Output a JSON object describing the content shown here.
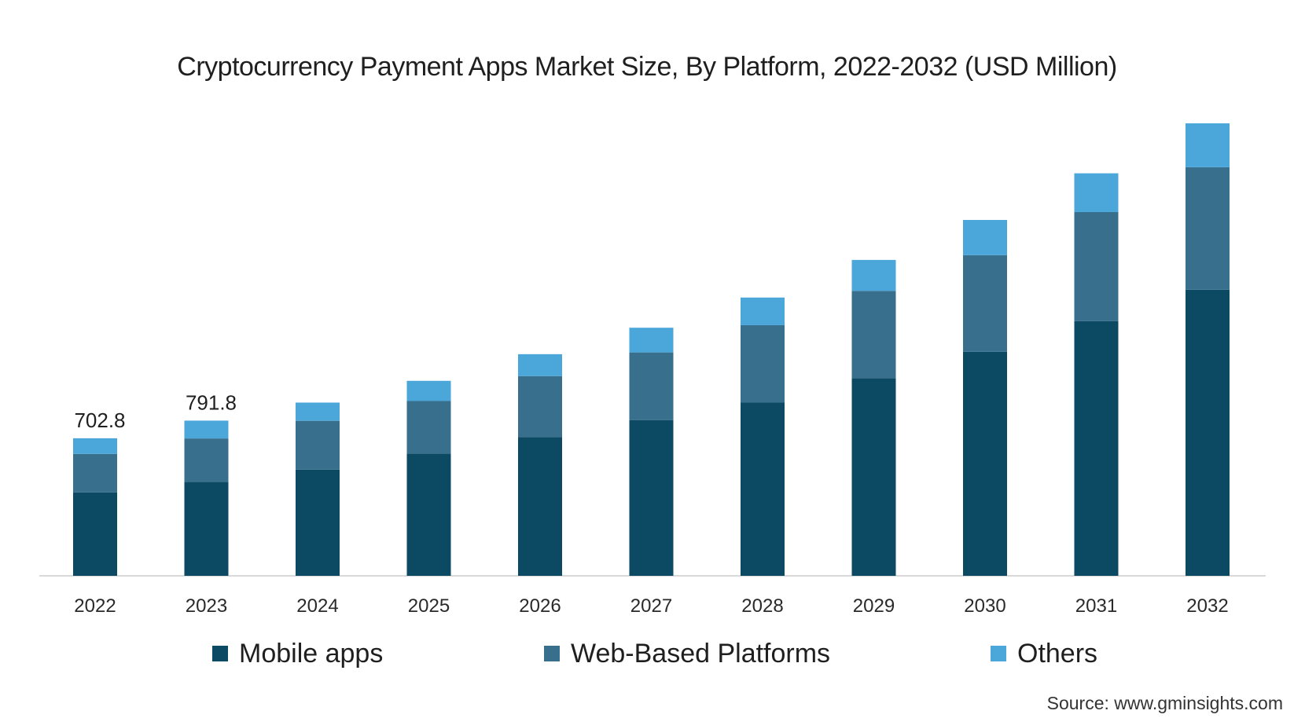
{
  "chart_data": {
    "type": "bar",
    "stacked": true,
    "title": "Cryptocurrency Payment Apps Market Size, By Platform, 2022-2032 (USD Million)",
    "categories": [
      "2022",
      "2023",
      "2024",
      "2025",
      "2026",
      "2027",
      "2028",
      "2029",
      "2030",
      "2031",
      "2032"
    ],
    "series": [
      {
        "name": "Mobile apps",
        "color": "#0b4a62",
        "values": [
          426,
          480,
          542,
          624,
          708,
          794,
          884,
          1009,
          1143,
          1300,
          1460
        ]
      },
      {
        "name": "Web-Based Platforms",
        "color": "#386f8c",
        "values": [
          196,
          221,
          249,
          268,
          311,
          346,
          395,
          445,
          493,
          556,
          625
        ]
      },
      {
        "name": "Others",
        "color": "#4ba6da",
        "values": [
          80,
          91,
          93,
          103,
          112,
          126,
          141,
          158,
          180,
          198,
          224
        ]
      }
    ],
    "data_labels": [
      {
        "category": "2022",
        "text": "702.8"
      },
      {
        "category": "2023",
        "text": "791.8"
      }
    ],
    "ylim": [
      0,
      2309
    ],
    "grid": false,
    "legend_position": "bottom",
    "xlabel": "",
    "ylabel": ""
  },
  "source": "Source: www.gminsights.com"
}
